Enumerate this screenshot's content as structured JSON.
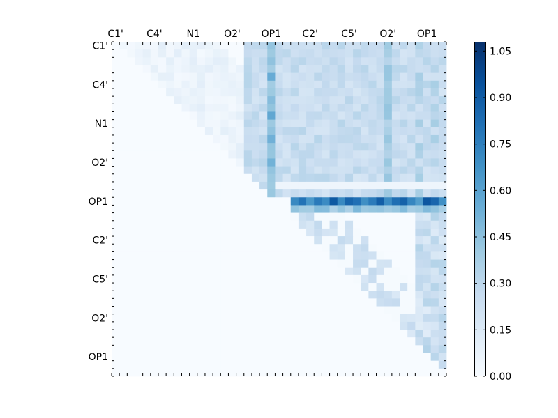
{
  "chart_data": {
    "type": "heatmap",
    "colormap": "Blues",
    "title": "",
    "xlabel": "",
    "ylabel": "",
    "x_tick_labels": [
      "C1'",
      "C4'",
      "N1",
      "O2'",
      "OP1",
      "C2'",
      "C5'",
      "O2'",
      "OP1"
    ],
    "y_tick_labels": [
      "C1'",
      "C4'",
      "N1",
      "O2'",
      "OP1",
      "C2'",
      "C5'",
      "O2'",
      "OP1"
    ],
    "colorbar": {
      "range": [
        0.0,
        1.08
      ],
      "ticks": [
        "0.00",
        "0.15",
        "0.30",
        "0.45",
        "0.60",
        "0.75",
        "0.90",
        "1.05"
      ],
      "placement": "right"
    },
    "grid": false,
    "n_rows": 43,
    "n_cols": 43,
    "structure": "upper-triangular matrix; rows 0-19 show values 0.05-0.35 across cols ~17-42 with high stripe at col 20 (~0.5); row 20 is a dense band of high values (0.7-1.05); rows 21-42 show sparse low values 0.05-0.35 near the diagonal and in cols 39-42"
  }
}
